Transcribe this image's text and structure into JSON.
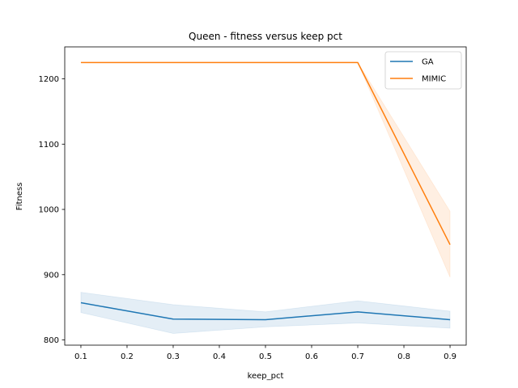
{
  "chart_data": {
    "type": "line",
    "title": "Queen - fitness versus keep pct",
    "xlabel": "keep_pct",
    "ylabel": "Fitness",
    "xlim": [
      0.065,
      0.935
    ],
    "ylim": [
      792,
      1249
    ],
    "xticks": [
      0.1,
      0.2,
      0.3,
      0.4,
      0.5,
      0.6,
      0.7,
      0.8,
      0.9
    ],
    "xtick_labels": [
      "0.1",
      "0.2",
      "0.3",
      "0.4",
      "0.5",
      "0.6",
      "0.7",
      "0.8",
      "0.9"
    ],
    "yticks": [
      800,
      900,
      1000,
      1100,
      1200
    ],
    "ytick_labels": [
      "800",
      "900",
      "1000",
      "1100",
      "1200"
    ],
    "grid": false,
    "legend_position": "top-right",
    "series": [
      {
        "name": "GA",
        "color": "#1f77b4",
        "x": [
          0.1,
          0.3,
          0.5,
          0.7,
          0.9
        ],
        "y": [
          857,
          832,
          831,
          843,
          831
        ],
        "ci_low": [
          842,
          810,
          820,
          826,
          818
        ],
        "ci_high": [
          873,
          854,
          843,
          860,
          844
        ]
      },
      {
        "name": "MIMIC",
        "color": "#ff7f0e",
        "x": [
          0.1,
          0.3,
          0.5,
          0.7,
          0.9
        ],
        "y": [
          1225,
          1225,
          1225,
          1225,
          946
        ],
        "ci_low": [
          1225,
          1225,
          1225,
          1225,
          896
        ],
        "ci_high": [
          1225,
          1225,
          1225,
          1225,
          997
        ]
      }
    ]
  }
}
